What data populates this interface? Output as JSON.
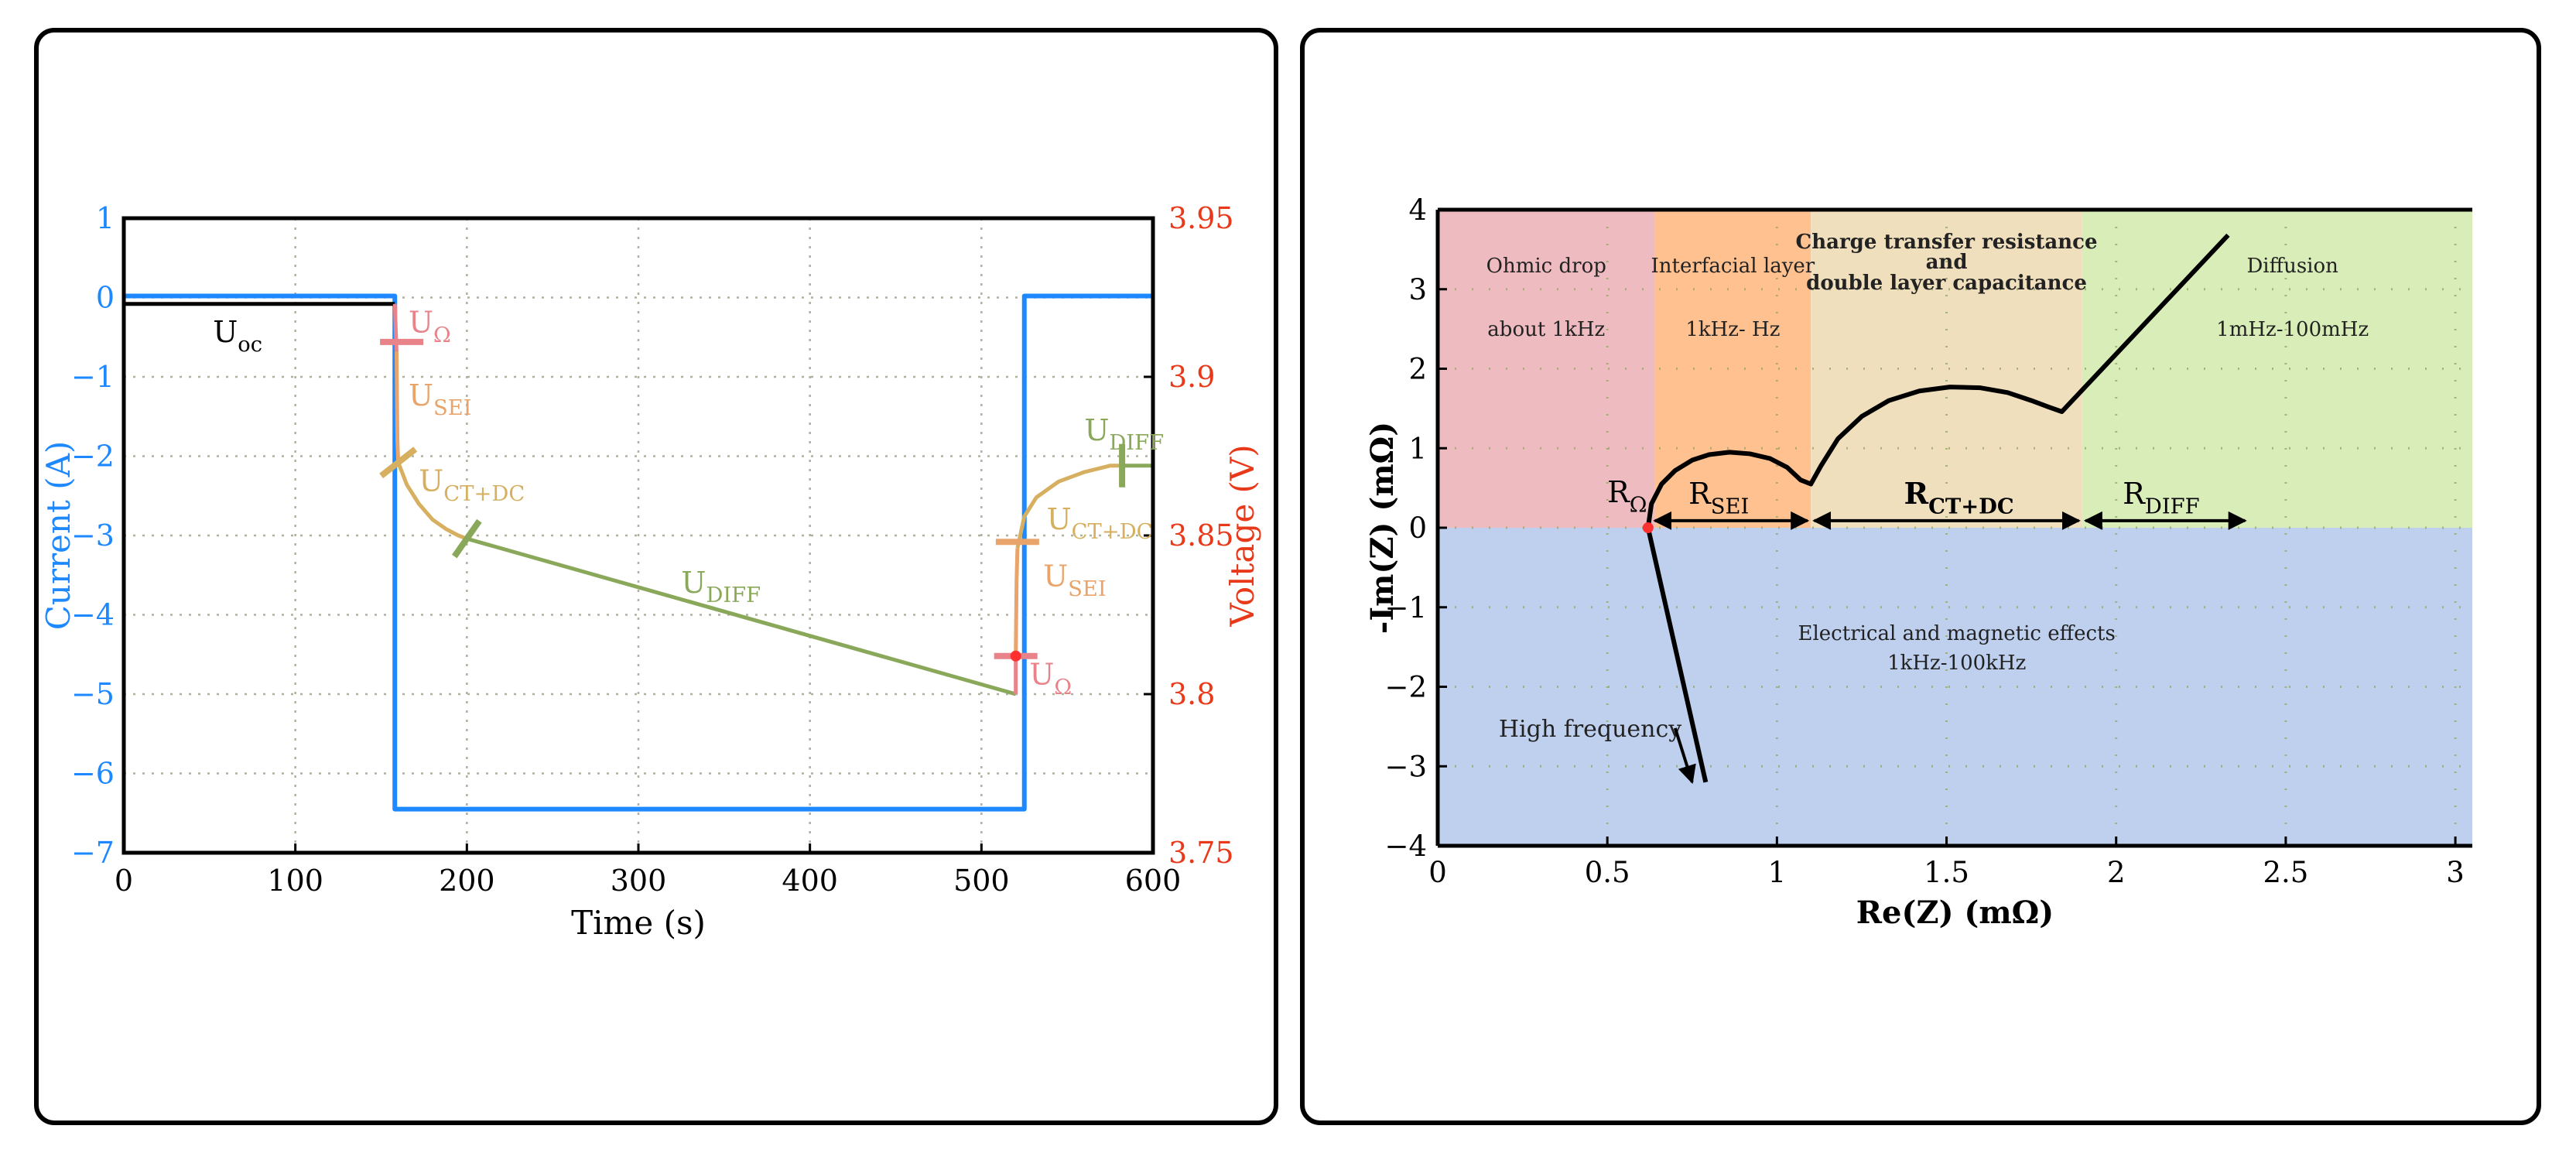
{
  "colors": {
    "current": "#1e88ff",
    "voltage_axis": "#e8391a",
    "ocv": "#000000",
    "u_ohm": "#e8838a",
    "u_sei": "#e8a46a",
    "u_ctdc": "#d6b060",
    "u_diff": "#8aa85a",
    "marker_red": "#ff3030",
    "grid": "#b0b0a0",
    "ohmic_region": "#eebbc0",
    "sei_region": "#ffc190",
    "ct_region": "#f0dfbd",
    "diff_region": "#d8edb7",
    "lower_region": "#bed0ee"
  },
  "chart_data": [
    {
      "id": "pulse-response",
      "type": "line",
      "xlabel": "Time (s)",
      "ylabel_left": "Current (A)",
      "ylabel_right": "Voltage (V)",
      "xlim": [
        0,
        600
      ],
      "ylim_left": [
        -7,
        1
      ],
      "ylim_right": [
        3.75,
        3.95
      ],
      "xticks": [
        0,
        100,
        200,
        300,
        400,
        500,
        600
      ],
      "xtick_labels": [
        "0",
        "100",
        "200",
        "300",
        "400",
        "500",
        "600"
      ],
      "yticks_left": [
        1,
        0,
        -1,
        -2,
        -3,
        -4,
        -5,
        -6,
        -7
      ],
      "ytick_labels_left": [
        "1",
        "0",
        "−1",
        "−2",
        "−3",
        "−4",
        "−5",
        "−6",
        "−7"
      ],
      "yticks_right": [
        3.95,
        3.9,
        3.85,
        3.8,
        3.75
      ],
      "ytick_labels_right": [
        "3.95",
        "3.9",
        "3.85",
        "3.8",
        "3.75"
      ],
      "grid": true,
      "series": [
        {
          "name": "Current",
          "axis": "left",
          "color_key": "current",
          "x": [
            0,
            158,
            158,
            525,
            525,
            600
          ],
          "y": [
            0.02,
            0.02,
            -6.45,
            -6.45,
            0.02,
            0.02
          ]
        },
        {
          "name": "Uoc",
          "axis": "right",
          "color_key": "ocv",
          "x": [
            0,
            158
          ],
          "y": [
            3.923,
            3.923
          ]
        },
        {
          "name": "UΩ (discharge)",
          "axis": "right",
          "color_key": "u_ohm",
          "x": [
            158,
            159
          ],
          "y": [
            3.923,
            3.908
          ]
        },
        {
          "name": "USEI (discharge)",
          "axis": "right",
          "color_key": "u_sei",
          "x": [
            159,
            159.5,
            160
          ],
          "y": [
            3.908,
            3.88,
            3.873
          ]
        },
        {
          "name": "UCT+DC (discharge)",
          "axis": "right",
          "color_key": "u_ctdc",
          "x": [
            160,
            165,
            172,
            180,
            188,
            195,
            200
          ],
          "y": [
            3.873,
            3.866,
            3.86,
            3.855,
            3.852,
            3.85,
            3.849
          ]
        },
        {
          "name": "UDIFF (discharge)",
          "axis": "right",
          "color_key": "u_diff",
          "x": [
            200,
            520
          ],
          "y": [
            3.849,
            3.8
          ]
        },
        {
          "name": "UΩ (relaxation)",
          "axis": "right",
          "color_key": "u_ohm",
          "x": [
            520,
            520
          ],
          "y": [
            3.8,
            3.812
          ]
        },
        {
          "name": "USEI (relaxation)",
          "axis": "right",
          "color_key": "u_sei",
          "x": [
            520,
            520.5,
            521
          ],
          "y": [
            3.812,
            3.836,
            3.846
          ]
        },
        {
          "name": "UCT+DC (relaxation)",
          "axis": "right",
          "color_key": "u_ctdc",
          "x": [
            521,
            525,
            532,
            545,
            560,
            575,
            582
          ],
          "y": [
            3.846,
            3.856,
            3.862,
            3.867,
            3.87,
            3.872,
            3.872
          ]
        },
        {
          "name": "UDIFF (relaxation)",
          "axis": "right",
          "color_key": "u_diff",
          "x": [
            582,
            600
          ],
          "y": [
            3.872,
            3.872
          ]
        }
      ],
      "markers": [
        {
          "series": "UΩ marker 1",
          "x": 162,
          "y": 3.911,
          "color_key": "u_ohm",
          "angle": 0
        },
        {
          "series": "UCT+DC marker 1",
          "x": 160,
          "y": 3.873,
          "color_key": "u_ctdc",
          "angle": -38
        },
        {
          "series": "UDIFF marker 1",
          "x": 200,
          "y": 3.849,
          "color_key": "u_diff",
          "angle": -55
        },
        {
          "series": "UΩ marker 2",
          "x": 520,
          "y": 3.812,
          "color_key": "u_ohm",
          "angle": 0
        },
        {
          "series": "USEI marker 2",
          "x": 521,
          "y": 3.848,
          "color_key": "u_sei",
          "angle": 0
        },
        {
          "series": "UDIFF marker 2",
          "x": 582,
          "y": 3.872,
          "color_key": "u_diff",
          "angle": 90
        }
      ],
      "red_dot": {
        "x": 520,
        "y": 3.812
      },
      "annotations": [
        {
          "base": "U",
          "sub": "oc",
          "x": 52,
          "y": 3.911,
          "color_key": "ocv"
        },
        {
          "base": "U",
          "sub": "Ω",
          "x": 166,
          "y": 3.914,
          "color_key": "u_ohm"
        },
        {
          "base": "U",
          "sub": "SEI",
          "x": 166,
          "y": 3.891,
          "color_key": "u_sei"
        },
        {
          "base": "U",
          "sub": "CT+DC",
          "x": 172,
          "y": 3.864,
          "color_key": "u_ctdc"
        },
        {
          "base": "U",
          "sub": "DIFF",
          "x": 325,
          "y": 3.832,
          "color_key": "u_diff"
        },
        {
          "base": "U",
          "sub": "CT+DC",
          "x": 538,
          "y": 3.852,
          "color_key": "u_ctdc"
        },
        {
          "base": "U",
          "sub": "SEI",
          "x": 536,
          "y": 3.834,
          "color_key": "u_sei"
        },
        {
          "base": "U",
          "sub": "Ω",
          "x": 528,
          "y": 3.803,
          "color_key": "u_ohm"
        },
        {
          "base": "U",
          "sub": "DIFF",
          "x": 560,
          "y": 3.88,
          "color_key": "u_diff"
        }
      ]
    },
    {
      "id": "nyquist-plot",
      "type": "line",
      "xlabel": "Re(Z) (mΩ)",
      "ylabel": "-Im(Z) (mΩ)",
      "xlim": [
        0,
        3.05
      ],
      "ylim": [
        -4,
        4
      ],
      "xticks": [
        0,
        0.5,
        1,
        1.5,
        2,
        2.5,
        3
      ],
      "xtick_labels": [
        "0",
        "0.5",
        "1",
        "1.5",
        "2",
        "2.5",
        "3"
      ],
      "yticks": [
        4,
        3,
        2,
        1,
        0,
        -1,
        -2,
        -3,
        -4
      ],
      "ytick_labels": [
        "4",
        "3",
        "2",
        "1",
        "0",
        "−1",
        "−2",
        "−3",
        "−4"
      ],
      "grid": true,
      "regions": [
        {
          "name": "Ohmic drop",
          "x0": 0,
          "x1": 0.64,
          "y0": 0,
          "y1": 4,
          "color_key": "ohmic_region"
        },
        {
          "name": "Interfacial layer",
          "x0": 0.64,
          "x1": 1.1,
          "y0": 0,
          "y1": 4,
          "color_key": "sei_region"
        },
        {
          "name": "Charge transfer",
          "x0": 1.1,
          "x1": 1.9,
          "y0": 0,
          "y1": 4,
          "color_key": "ct_region"
        },
        {
          "name": "Diffusion",
          "x0": 1.9,
          "x1": 3.05,
          "y0": 0,
          "y1": 4,
          "color_key": "diff_region"
        },
        {
          "name": "Electrical effects",
          "x0": 0,
          "x1": 3.05,
          "y0": -4,
          "y1": 0,
          "color_key": "lower_region"
        }
      ],
      "series": [
        {
          "name": "Impedance spectrum",
          "color_key": "ocv",
          "x": [
            0.79,
            0.62,
            0.63,
            0.66,
            0.7,
            0.75,
            0.8,
            0.86,
            0.92,
            0.98,
            1.03,
            1.07,
            1.1,
            1.13,
            1.18,
            1.25,
            1.33,
            1.42,
            1.51,
            1.6,
            1.68,
            1.75,
            1.8,
            1.84,
            2.33
          ],
          "y": [
            -3.2,
            0.0,
            0.3,
            0.55,
            0.72,
            0.85,
            0.92,
            0.95,
            0.93,
            0.87,
            0.76,
            0.6,
            0.55,
            0.78,
            1.12,
            1.4,
            1.6,
            1.72,
            1.77,
            1.76,
            1.7,
            1.6,
            1.52,
            1.46,
            3.68
          ]
        }
      ],
      "red_dot": {
        "x": 0.62,
        "y": 0.0
      },
      "resistance_spans": [
        {
          "x0": 0.64,
          "x1": 1.09,
          "base": "R",
          "sub": "SEI"
        },
        {
          "x0": 1.11,
          "x1": 1.89,
          "base": "R",
          "sub": "CT+DC",
          "bold": true
        },
        {
          "x0": 1.91,
          "x1": 2.38,
          "base": "R",
          "sub": "DIFF"
        }
      ],
      "r_ohm_label": {
        "base": "R",
        "sub": "Ω"
      },
      "region_texts": {
        "ohmic_title": "Ohmic drop",
        "ohmic_freq": "about 1kHz",
        "sei_title": "Interfacial layer",
        "sei_freq": "1kHz- Hz",
        "ct_title_1": "Charge transfer resistance",
        "ct_title_2": "and",
        "ct_title_3": "double layer capacitance",
        "diff_title": "Diffusion",
        "diff_freq": "1mHz-100mHz",
        "lower_title": "Electrical and magnetic effects",
        "lower_freq": "1kHz-100kHz",
        "high_freq": "High frequency"
      }
    }
  ]
}
